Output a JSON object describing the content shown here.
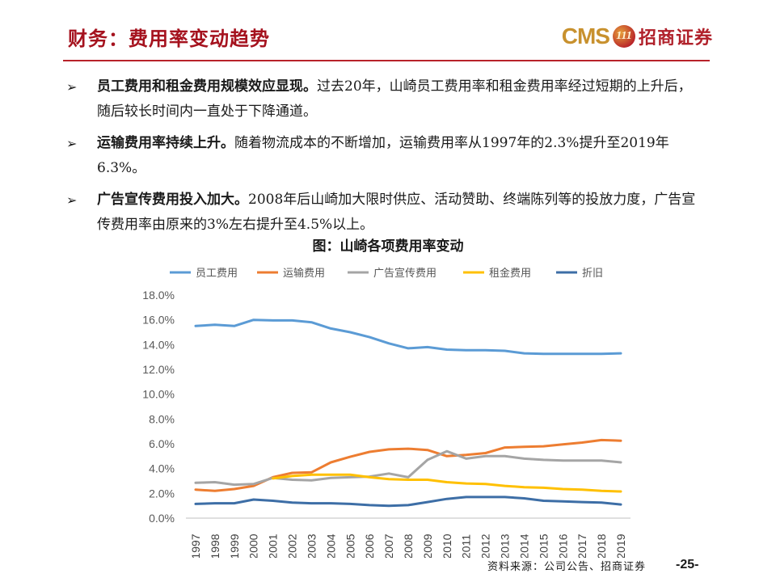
{
  "header": {
    "title": "财务：费用率变动趋势",
    "logo_text": "CMS",
    "logo_mark": "111",
    "logo_cn": "招商证券"
  },
  "bullets": [
    {
      "bold": "员工费用和租金费用规模效应显现。",
      "text": "过去20年，山崎员工费用率和租金费用率经过短期的上升后，随后较长时间内一直处于下降通道。"
    },
    {
      "bold": "运输费用率持续上升。",
      "text": "随着物流成本的不断增加，运输费用率从1997年的2.3%提升至2019年6.3%。"
    },
    {
      "bold": "广告宣传费用投入加大。",
      "text": "2008年后山崎加大限时供应、活动赞助、终端陈列等的投放力度，广告宣传费用率由原来的3%左右提升至4.5%以上。"
    }
  ],
  "bullet_icon": "arrow-bullet-icon",
  "chart_caption": "图：山崎各项费用率变动",
  "chart_data": {
    "type": "line",
    "x": [
      "1997",
      "1998",
      "1999",
      "2000",
      "2001",
      "2002",
      "2003",
      "2004",
      "2005",
      "2006",
      "2007",
      "2008",
      "2009",
      "2010",
      "2011",
      "2012",
      "2013",
      "2014",
      "2015",
      "2016",
      "2017",
      "2018",
      "2019"
    ],
    "ylim": [
      0,
      18
    ],
    "yticks": [
      "0.0%",
      "2.0%",
      "4.0%",
      "6.0%",
      "8.0%",
      "10.0%",
      "12.0%",
      "14.0%",
      "16.0%",
      "18.0%"
    ],
    "legend_position": "top",
    "grid": false,
    "series": [
      {
        "name": "员工费用",
        "color": "#5b9bd5",
        "values": [
          15.5,
          15.6,
          15.5,
          16.0,
          15.95,
          15.95,
          15.8,
          15.3,
          15.0,
          14.6,
          14.1,
          13.7,
          13.8,
          13.6,
          13.55,
          13.55,
          13.5,
          13.3,
          13.25,
          13.25,
          13.25,
          13.25,
          13.3
        ]
      },
      {
        "name": "运输费用",
        "color": "#ed7d31",
        "values": [
          2.3,
          2.2,
          2.35,
          2.6,
          3.3,
          3.65,
          3.7,
          4.5,
          4.95,
          5.35,
          5.55,
          5.6,
          5.5,
          5.0,
          5.1,
          5.25,
          5.7,
          5.75,
          5.8,
          5.95,
          6.1,
          6.3,
          6.25
        ]
      },
      {
        "name": "广告宣传费用",
        "color": "#a5a5a5",
        "values": [
          2.85,
          2.9,
          2.7,
          2.75,
          3.25,
          3.1,
          3.05,
          3.25,
          3.3,
          3.35,
          3.6,
          3.3,
          4.7,
          5.4,
          4.8,
          5.0,
          5.0,
          4.8,
          4.7,
          4.65,
          4.65,
          4.65,
          4.5
        ]
      },
      {
        "name": "租金费用",
        "color": "#ffc000",
        "values": [
          null,
          null,
          null,
          null,
          3.2,
          3.4,
          3.5,
          3.5,
          3.5,
          3.3,
          3.15,
          3.1,
          3.1,
          2.9,
          2.8,
          2.75,
          2.6,
          2.5,
          2.45,
          2.35,
          2.3,
          2.2,
          2.15
        ]
      },
      {
        "name": "折旧",
        "color": "#3d6ea6",
        "values": [
          1.15,
          1.2,
          1.2,
          1.5,
          1.4,
          1.25,
          1.2,
          1.2,
          1.15,
          1.05,
          1.0,
          1.05,
          1.3,
          1.55,
          1.7,
          1.7,
          1.7,
          1.6,
          1.4,
          1.35,
          1.3,
          1.25,
          1.1
        ]
      }
    ]
  },
  "source": "资料来源：公司公告、招商证券",
  "page_number": "-25-"
}
